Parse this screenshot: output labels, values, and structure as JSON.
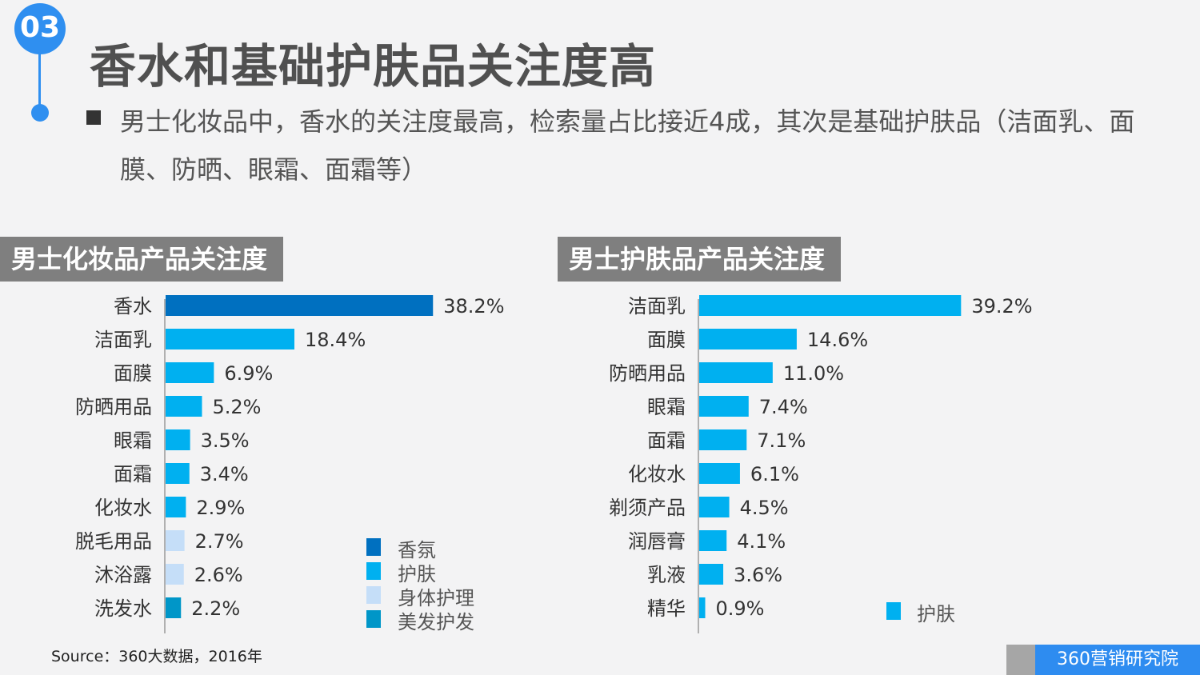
{
  "badge": "03",
  "title": "香水和基础护肤品关注度高",
  "description": "男士化妆品中，香水的关注度最高，检索量占比接近4成，其次是基础护肤品（洁面乳、面膜、防晒、眼霜、面霜等）",
  "source": "Source：360大数据，2016年",
  "brand": "360营销研究院",
  "colors": {
    "fragrance": "#0070c0",
    "skincare": "#00b0f0",
    "bodycare": "#c5def8",
    "haircare": "#0096c8"
  },
  "chart_data": [
    {
      "type": "bar",
      "orientation": "horizontal",
      "title": "男士化妆品产品关注度",
      "categories": [
        "香水",
        "洁面乳",
        "面膜",
        "防晒用品",
        "眼霜",
        "面霜",
        "化妆水",
        "脱毛用品",
        "沐浴露",
        "洗发水"
      ],
      "values": [
        38.2,
        18.4,
        6.9,
        5.2,
        3.5,
        3.4,
        2.9,
        2.7,
        2.6,
        2.2
      ],
      "value_labels": [
        "38.2%",
        "18.4%",
        "6.9%",
        "5.2%",
        "3.5%",
        "3.4%",
        "2.9%",
        "2.7%",
        "2.6%",
        "2.2%"
      ],
      "groups": [
        "香氛",
        "护肤",
        "护肤",
        "护肤",
        "护肤",
        "护肤",
        "护肤",
        "身体护理",
        "身体护理",
        "美发护发"
      ],
      "legend": [
        {
          "name": "香氛",
          "color": "#0070c0"
        },
        {
          "name": "护肤",
          "color": "#00b0f0"
        },
        {
          "name": "身体护理",
          "color": "#c5def8"
        },
        {
          "name": "美发护发",
          "color": "#0096c8"
        }
      ],
      "xlim": [
        0,
        40
      ],
      "legend_position": "bottom-right"
    },
    {
      "type": "bar",
      "orientation": "horizontal",
      "title": "男士护肤品产品关注度",
      "categories": [
        "洁面乳",
        "面膜",
        "防晒用品",
        "眼霜",
        "面霜",
        "化妆水",
        "剃须产品",
        "润唇膏",
        "乳液",
        "精华"
      ],
      "values": [
        39.2,
        14.6,
        11.0,
        7.4,
        7.1,
        6.1,
        4.5,
        4.1,
        3.6,
        0.9
      ],
      "value_labels": [
        "39.2%",
        "14.6%",
        "11.0%",
        "7.4%",
        "7.1%",
        "6.1%",
        "4.5%",
        "4.1%",
        "3.6%",
        "0.9%"
      ],
      "groups": [
        "护肤",
        "护肤",
        "护肤",
        "护肤",
        "护肤",
        "护肤",
        "护肤",
        "护肤",
        "护肤",
        "护肤"
      ],
      "legend": [
        {
          "name": "护肤",
          "color": "#00b0f0"
        }
      ],
      "xlim": [
        0,
        40
      ],
      "legend_position": "bottom-right"
    }
  ]
}
